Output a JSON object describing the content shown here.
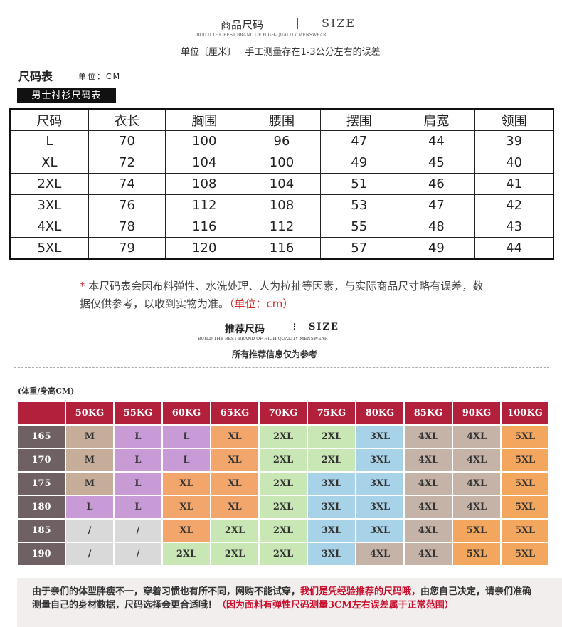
{
  "header": {
    "title": "商品尺码",
    "title_en": "SIZE",
    "subtitle": "BUILD THE BEST BRAND OF HIGH-QUALITY MENSWEAR",
    "unit": "单位〔厘米〕",
    "unit_note": "手工测量存在1-3公分左右的误差"
  },
  "size_section": {
    "title": "尺码表",
    "unit": "单位：CM",
    "tag": "男士衬衫尺码表"
  },
  "size_table": {
    "columns": [
      "尺码",
      "衣长",
      "胸围",
      "腰围",
      "摆围",
      "肩宽",
      "领围"
    ],
    "rows": [
      [
        "L",
        70,
        100,
        96,
        47,
        44,
        39
      ],
      [
        "XL",
        72,
        104,
        100,
        49,
        45,
        40
      ],
      [
        "2XL",
        74,
        108,
        104,
        51,
        46,
        41
      ],
      [
        "3XL",
        76,
        112,
        108,
        53,
        47,
        42
      ],
      [
        "4XL",
        78,
        116,
        112,
        55,
        48,
        43
      ],
      [
        "5XL",
        79,
        120,
        116,
        57,
        49,
        44
      ]
    ]
  },
  "note": {
    "star": "*",
    "text": "本尺码表会因布料弹性、水洗处理、人为拉扯等因素，与实际商品尺寸略有误差，数据仅供参考，以收到实物为准。",
    "unit": "（单位：cm）"
  },
  "recommend_header": {
    "title": "推荐尺码",
    "title_en": "SIZE",
    "subtitle": "BUILD THE BEST BRAND OF HIGH-QUALITY MENSWEAR",
    "note": "所有推荐信息仅为参考"
  },
  "recommend_table": {
    "label": "(体重/身高CM)",
    "weights": [
      "50KG",
      "55KG",
      "60KG",
      "65KG",
      "70KG",
      "75KG",
      "80KG",
      "85KG",
      "90KG",
      "100KG"
    ],
    "palette": {
      "M": "#c6ad9a",
      "L": "#c99bd6",
      "XL": "#f2a66c",
      "2XL": "#c9e6b5",
      "3XL": "#a8d2e8",
      "4XL": "#c5b3a8",
      "5XL": "#f2a65e",
      "/": "#d9d9d9"
    },
    "rows": [
      {
        "height": "165",
        "sizes": [
          "M",
          "L",
          "L",
          "XL",
          "2XL",
          "2XL",
          "3XL",
          "4XL",
          "4XL",
          "5XL"
        ]
      },
      {
        "height": "170",
        "sizes": [
          "M",
          "L",
          "L",
          "XL",
          "2XL",
          "2XL",
          "3XL",
          "4XL",
          "4XL",
          "5XL"
        ]
      },
      {
        "height": "175",
        "sizes": [
          "M",
          "L",
          "XL",
          "XL",
          "2XL",
          "3XL",
          "3XL",
          "4XL",
          "4XL",
          "5XL"
        ]
      },
      {
        "height": "180",
        "sizes": [
          "L",
          "L",
          "XL",
          "XL",
          "2XL",
          "3XL",
          "3XL",
          "4XL",
          "4XL",
          "5XL"
        ]
      },
      {
        "height": "185",
        "sizes": [
          "/",
          "/",
          "XL",
          "2XL",
          "2XL",
          "3XL",
          "3XL",
          "4XL",
          "5XL",
          "5XL"
        ]
      },
      {
        "height": "190",
        "sizes": [
          "/",
          "/",
          "2XL",
          "2XL",
          "2XL",
          "3XL",
          "4XL",
          "4XL",
          "5XL",
          "5XL"
        ]
      }
    ]
  },
  "footer": {
    "part1": "由于亲们的体型胖瘦不一，穿着习惯也有所不同，网购不能试穿，",
    "part2": "我们是凭经验推荐的尺码哦，",
    "part3": "由您自己决定，请亲们准确测量自己的身材数据，尺码选择会更合适哦！",
    "part4": "（因为面料有弹性尺码测量3CM左右误差属于正常范围）"
  }
}
